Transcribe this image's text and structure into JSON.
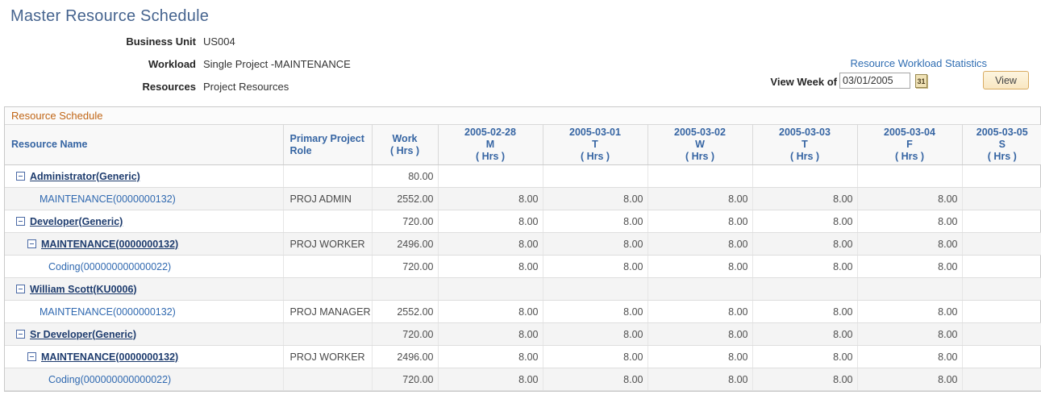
{
  "page": {
    "title": "Master Resource Schedule"
  },
  "info": {
    "fields": [
      {
        "label": "Business Unit",
        "value": "US004"
      },
      {
        "label": "Workload",
        "value": "Single Project -MAINTENANCE"
      },
      {
        "label": "Resources",
        "value": "Project Resources"
      }
    ],
    "stats_link": "Resource Workload Statistics",
    "view_week_label": "View Week of",
    "view_week_value": "03/01/2005",
    "calendar_icon_text": "31",
    "view_button": "View"
  },
  "colors": {
    "title_blue": "#46648f",
    "grid_title_orange": "#c06515",
    "header_blue": "#3665a3",
    "link_navy": "#1e3c6e",
    "link_blue": "#3069b0",
    "button_face": "#fbeccc",
    "button_border": "#d8ab62"
  },
  "grid": {
    "title": "Resource Schedule",
    "columns": [
      {
        "key": "resource-name",
        "align": "left",
        "lines": [
          "Resource Name"
        ]
      },
      {
        "key": "primary-project-role",
        "align": "left",
        "lines": [
          "Primary Project",
          "Role"
        ]
      },
      {
        "key": "work-hrs",
        "align": "center",
        "lines": [
          "Work",
          "( Hrs )"
        ]
      },
      {
        "key": "day-2005-02-28",
        "align": "center",
        "lines": [
          "2005-02-28",
          "M",
          "( Hrs )"
        ]
      },
      {
        "key": "day-2005-03-01",
        "align": "center",
        "lines": [
          "2005-03-01",
          "T",
          "( Hrs )"
        ]
      },
      {
        "key": "day-2005-03-02",
        "align": "center",
        "lines": [
          "2005-03-02",
          "W",
          "( Hrs )"
        ]
      },
      {
        "key": "day-2005-03-03",
        "align": "center",
        "lines": [
          "2005-03-03",
          "T",
          "( Hrs )"
        ]
      },
      {
        "key": "day-2005-03-04",
        "align": "center",
        "lines": [
          "2005-03-04",
          "F",
          "( Hrs )"
        ]
      },
      {
        "key": "day-2005-03-05",
        "align": "center",
        "lines": [
          "2005-03-05",
          "S",
          "( Hrs )"
        ]
      }
    ],
    "rows": [
      {
        "name": "Administrator(Generic)",
        "level": 1,
        "icon": true,
        "style": "bold",
        "role": "",
        "work": "80.00",
        "days": [
          "",
          "",
          "",
          "",
          "",
          ""
        ]
      },
      {
        "name": "MAINTENANCE(0000000132)",
        "level": 2,
        "icon": false,
        "style": "plain",
        "role": "PROJ ADMIN",
        "work": "2552.00",
        "days": [
          "8.00",
          "8.00",
          "8.00",
          "8.00",
          "8.00",
          ""
        ]
      },
      {
        "name": "Developer(Generic)",
        "level": 1,
        "icon": true,
        "style": "bold",
        "role": "",
        "work": "720.00",
        "days": [
          "8.00",
          "8.00",
          "8.00",
          "8.00",
          "8.00",
          ""
        ]
      },
      {
        "name": "MAINTENANCE(0000000132)",
        "level": 2,
        "icon": true,
        "style": "bold",
        "role": "PROJ WORKER",
        "work": "2496.00",
        "days": [
          "8.00",
          "8.00",
          "8.00",
          "8.00",
          "8.00",
          ""
        ]
      },
      {
        "name": "Coding(000000000000022)",
        "level": 3,
        "icon": false,
        "style": "plain",
        "role": "",
        "work": "720.00",
        "days": [
          "8.00",
          "8.00",
          "8.00",
          "8.00",
          "8.00",
          ""
        ]
      },
      {
        "name": "William Scott(KU0006)",
        "level": 1,
        "icon": true,
        "style": "bold",
        "role": "",
        "work": "",
        "days": [
          "",
          "",
          "",
          "",
          "",
          ""
        ]
      },
      {
        "name": "MAINTENANCE(0000000132)",
        "level": 2,
        "icon": false,
        "style": "plain",
        "role": "PROJ MANAGER",
        "work": "2552.00",
        "days": [
          "8.00",
          "8.00",
          "8.00",
          "8.00",
          "8.00",
          ""
        ]
      },
      {
        "name": "Sr Developer(Generic)",
        "level": 1,
        "icon": true,
        "style": "bold",
        "role": "",
        "work": "720.00",
        "days": [
          "8.00",
          "8.00",
          "8.00",
          "8.00",
          "8.00",
          ""
        ]
      },
      {
        "name": "MAINTENANCE(0000000132)",
        "level": 2,
        "icon": true,
        "style": "bold",
        "role": "PROJ WORKER",
        "work": "2496.00",
        "days": [
          "8.00",
          "8.00",
          "8.00",
          "8.00",
          "8.00",
          ""
        ]
      },
      {
        "name": "Coding(000000000000022)",
        "level": 3,
        "icon": false,
        "style": "plain",
        "role": "",
        "work": "720.00",
        "days": [
          "8.00",
          "8.00",
          "8.00",
          "8.00",
          "8.00",
          ""
        ]
      }
    ]
  }
}
